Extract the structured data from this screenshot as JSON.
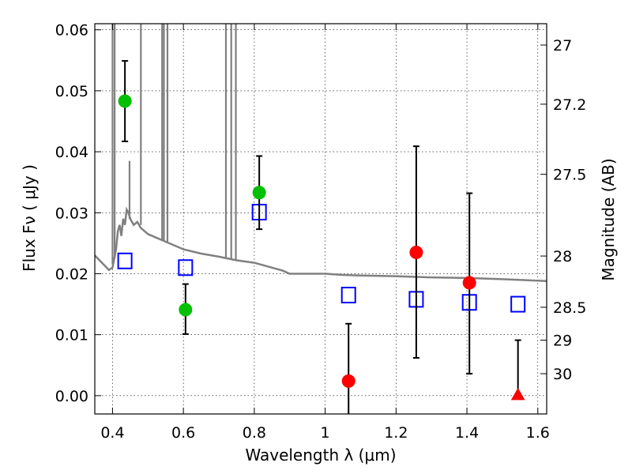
{
  "chart_data": {
    "type": "scatter",
    "xlabel": "Wavelength  λ (μm)",
    "ylabel": "Flux  Fν  ( μJy )",
    "ylabel_right": "Magnitude (AB)",
    "xlim": [
      0.35,
      1.625
    ],
    "ylim": [
      -0.003,
      0.061
    ],
    "grid": true,
    "x_ticks": [
      {
        "value": 0.4,
        "label": "0.4"
      },
      {
        "value": 0.6,
        "label": "0.6"
      },
      {
        "value": 0.8,
        "label": "0.8"
      },
      {
        "value": 1.0,
        "label": "1"
      },
      {
        "value": 1.2,
        "label": "1.2"
      },
      {
        "value": 1.4,
        "label": "1.4"
      },
      {
        "value": 1.6,
        "label": "1.6"
      }
    ],
    "y_ticks": [
      {
        "value": 0.0,
        "label": "0.00"
      },
      {
        "value": 0.01,
        "label": "0.01"
      },
      {
        "value": 0.02,
        "label": "0.02"
      },
      {
        "value": 0.03,
        "label": "0.03"
      },
      {
        "value": 0.04,
        "label": "0.04"
      },
      {
        "value": 0.05,
        "label": "0.05"
      },
      {
        "value": 0.06,
        "label": "0.06"
      }
    ],
    "right_ticks": [
      {
        "flux": 0.0575,
        "label": "27"
      },
      {
        "flux": 0.0478,
        "label": "27.2"
      },
      {
        "flux": 0.0363,
        "label": "27.5"
      },
      {
        "flux": 0.0229,
        "label": "28"
      },
      {
        "flux": 0.0145,
        "label": "28.5"
      },
      {
        "flux": 0.0091,
        "label": "29"
      },
      {
        "flux": 0.0036,
        "label": "30"
      }
    ],
    "observed_points": [
      {
        "x": 0.435,
        "y": 0.0483,
        "yerr_low": 0.0417,
        "yerr_high": 0.0549,
        "color": "#00c000",
        "marker": "circle"
      },
      {
        "x": 0.606,
        "y": 0.0141,
        "yerr_low": 0.0101,
        "yerr_high": 0.0183,
        "color": "#00c000",
        "marker": "circle"
      },
      {
        "x": 0.814,
        "y": 0.0333,
        "yerr_low": 0.0273,
        "yerr_high": 0.0393,
        "color": "#00c000",
        "marker": "circle"
      },
      {
        "x": 1.066,
        "y": 0.0024,
        "yerr_low": -0.0031,
        "yerr_high": 0.0118,
        "color": "#ff0000",
        "marker": "circle"
      },
      {
        "x": 1.257,
        "y": 0.0235,
        "yerr_low": 0.0062,
        "yerr_high": 0.0409,
        "color": "#ff0000",
        "marker": "circle"
      },
      {
        "x": 1.407,
        "y": 0.0185,
        "yerr_low": 0.0036,
        "yerr_high": 0.0332,
        "color": "#ff0000",
        "marker": "circle"
      },
      {
        "x": 1.544,
        "y": 0.0,
        "yerr_low": 0.0,
        "yerr_high": 0.0091,
        "color": "#ff0000",
        "marker": "triangle"
      }
    ],
    "model_points": {
      "color": "#0000ff",
      "marker": "open-square",
      "x": [
        0.435,
        0.606,
        0.814,
        1.066,
        1.257,
        1.407,
        1.544
      ],
      "y": [
        0.0221,
        0.021,
        0.0301,
        0.0165,
        0.0158,
        0.0153,
        0.015
      ]
    },
    "spectrum": {
      "color": "#808080",
      "x": [
        0.35,
        0.37,
        0.39,
        0.4,
        0.41,
        0.415,
        0.42,
        0.425,
        0.43,
        0.435,
        0.44,
        0.445,
        0.45,
        0.46,
        0.47,
        0.48,
        0.5,
        0.52,
        0.54,
        0.56,
        0.6,
        0.65,
        0.7,
        0.75,
        0.8,
        0.85,
        0.88,
        0.9,
        0.95,
        1.0,
        1.05,
        1.1,
        1.2,
        1.3,
        1.4,
        1.5,
        1.625
      ],
      "y": [
        0.023,
        0.0218,
        0.0206,
        0.021,
        0.024,
        0.027,
        0.028,
        0.0262,
        0.029,
        0.028,
        0.0305,
        0.03,
        0.029,
        0.028,
        0.0285,
        0.0275,
        0.0265,
        0.026,
        0.0255,
        0.025,
        0.024,
        0.0233,
        0.0228,
        0.0222,
        0.0218,
        0.021,
        0.0205,
        0.02,
        0.02,
        0.02,
        0.0198,
        0.0197,
        0.0196,
        0.0194,
        0.0193,
        0.0191,
        0.0188
      ]
    },
    "spectrum_spikes": [
      {
        "x": 0.4,
        "from": 0.0215,
        "to": 0.061
      },
      {
        "x": 0.406,
        "from": 0.0225,
        "to": 0.061
      },
      {
        "x": 0.448,
        "from": 0.029,
        "to": 0.0385
      },
      {
        "x": 0.48,
        "from": 0.028,
        "to": 0.061
      },
      {
        "x": 0.54,
        "from": 0.0255,
        "to": 0.061
      },
      {
        "x": 0.545,
        "from": 0.0255,
        "to": 0.061
      },
      {
        "x": 0.555,
        "from": 0.0252,
        "to": 0.061
      },
      {
        "x": 0.72,
        "from": 0.0226,
        "to": 0.061
      },
      {
        "x": 0.735,
        "from": 0.0224,
        "to": 0.061
      },
      {
        "x": 0.748,
        "from": 0.0222,
        "to": 0.061
      }
    ]
  }
}
